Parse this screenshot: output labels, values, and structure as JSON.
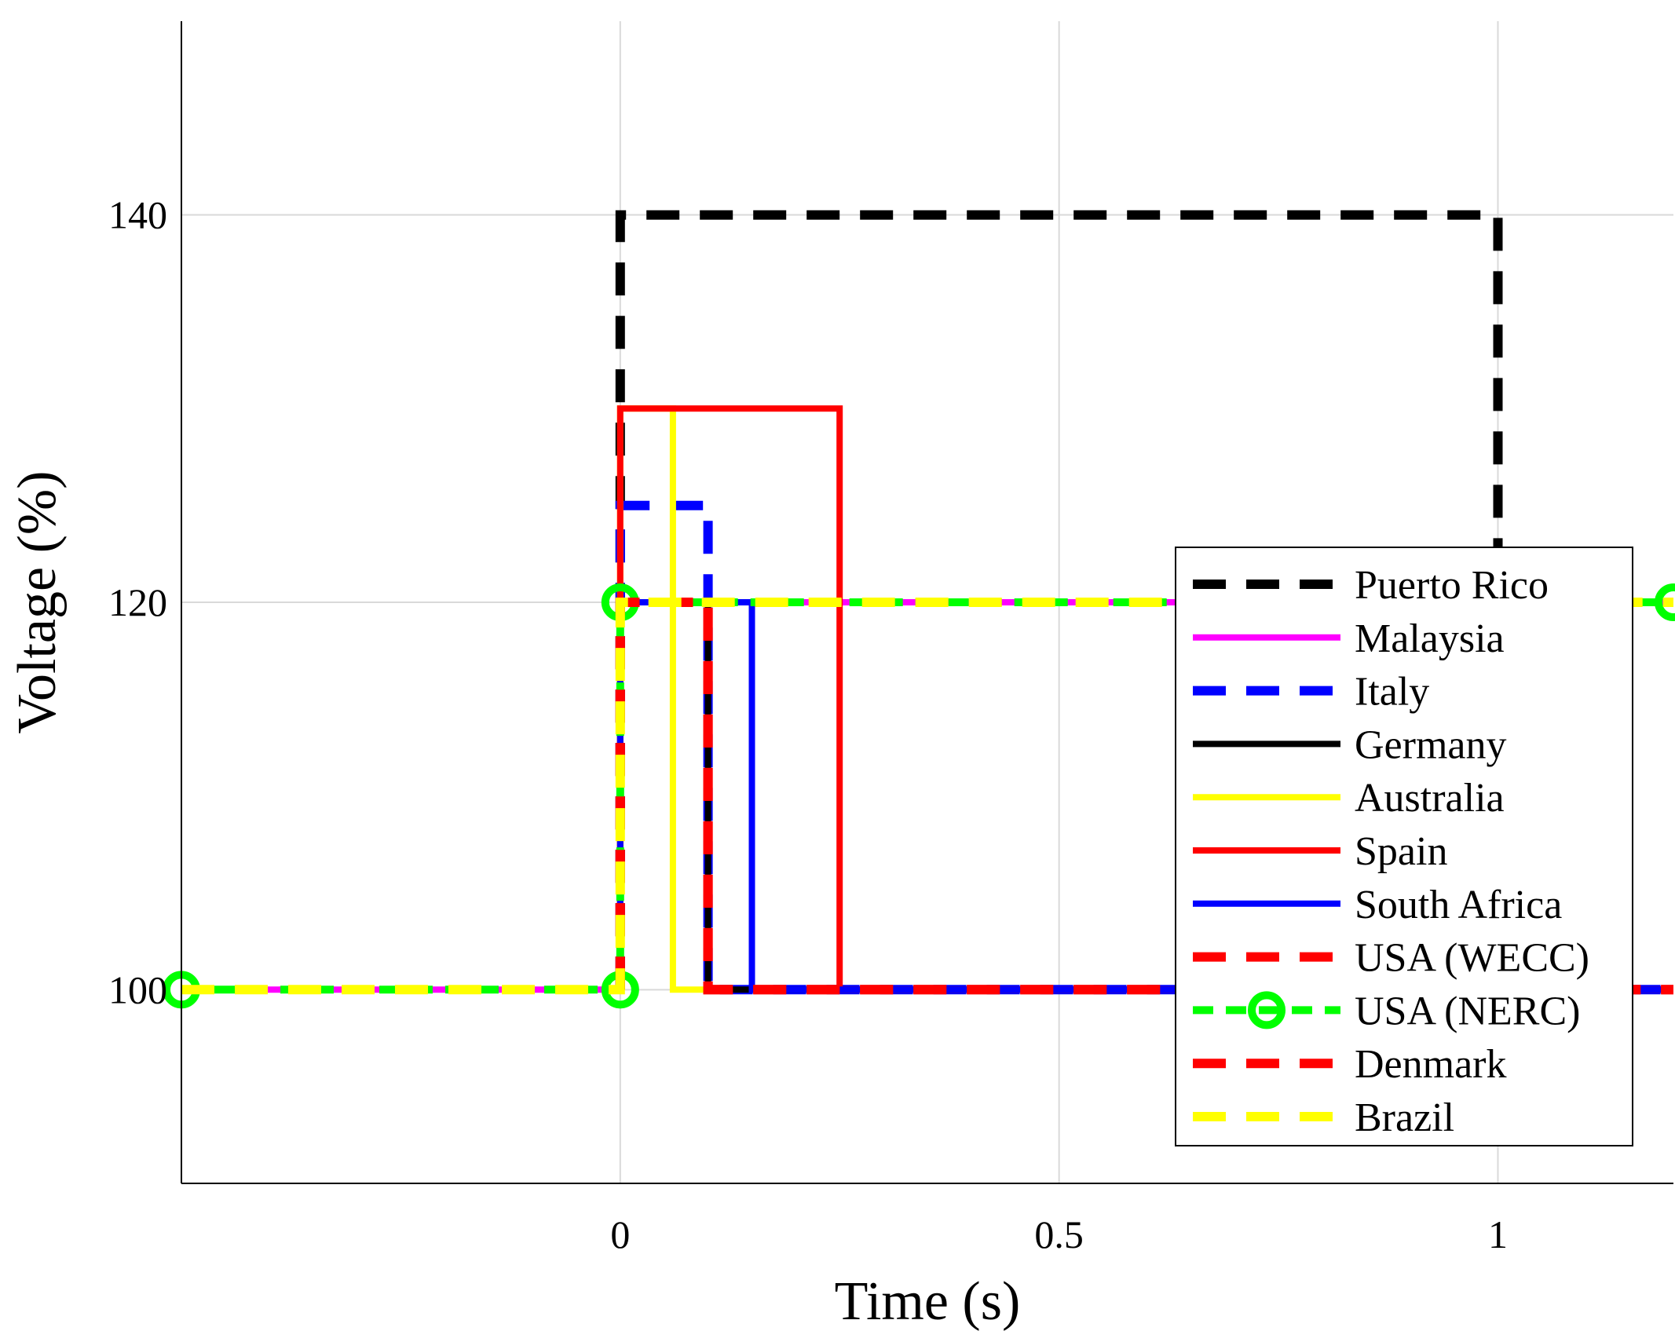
{
  "chart_data": {
    "type": "line",
    "title": "",
    "xlabel": "Time (s)",
    "ylabel": "Voltage (%)",
    "xlim": [
      -0.5,
      1.2
    ],
    "ylim": [
      90,
      150
    ],
    "grid": true,
    "xticks": [
      {
        "value": 0,
        "label": "0"
      },
      {
        "value": 0.5,
        "label": "0.5"
      },
      {
        "value": 1,
        "label": "1"
      }
    ],
    "yticks": [
      {
        "value": 100,
        "label": "100"
      },
      {
        "value": 120,
        "label": "120"
      },
      {
        "value": 140,
        "label": "140"
      }
    ],
    "legend_position": "lower-right",
    "series": [
      {
        "name": "Puerto Rico",
        "color": "#000000",
        "style": "dashed",
        "width": 12,
        "x": [
          0,
          0,
          1,
          1
        ],
        "y": [
          100,
          140,
          140,
          100
        ]
      },
      {
        "name": "Malaysia",
        "color": "#ff00ff",
        "style": "solid",
        "width": 8,
        "x": [
          -0.5,
          0,
          0,
          1.2
        ],
        "y": [
          100,
          100,
          120,
          120
        ]
      },
      {
        "name": "Italy",
        "color": "#0000ff",
        "style": "dashed",
        "width": 12,
        "x": [
          0,
          0,
          0.1,
          0.1,
          1.2
        ],
        "y": [
          100,
          125,
          125,
          100,
          100
        ]
      },
      {
        "name": "Germany",
        "color": "#000000",
        "style": "solid",
        "width": 8,
        "x": [
          0,
          0,
          0.1,
          0.1,
          1.2
        ],
        "y": [
          100,
          120,
          120,
          100,
          100
        ]
      },
      {
        "name": "Australia",
        "color": "#ffff00",
        "style": "solid",
        "width": 8,
        "x": [
          0,
          0,
          0.06,
          0.06,
          0.1
        ],
        "y": [
          100,
          130,
          130,
          100,
          100
        ]
      },
      {
        "name": "Spain",
        "color": "#ff0000",
        "style": "solid",
        "width": 8,
        "x": [
          0,
          0,
          0.25,
          0.25,
          1.2
        ],
        "y": [
          100,
          130,
          130,
          100,
          100
        ]
      },
      {
        "name": "South Africa",
        "color": "#0000ff",
        "style": "solid",
        "width": 8,
        "x": [
          0,
          0,
          0.15,
          0.15,
          1.2
        ],
        "y": [
          100,
          120,
          120,
          100,
          100
        ]
      },
      {
        "name": "USA (WECC)",
        "color": "#ff0000",
        "style": "dashed",
        "width": 12,
        "x": [
          0,
          0,
          0.1,
          0.1,
          1.2
        ],
        "y": [
          100,
          120,
          120,
          100,
          100
        ]
      },
      {
        "name": "USA (NERC)",
        "color": "#00ff00",
        "style": "dashed-marker",
        "width": 10,
        "x": [
          -0.5,
          0,
          0,
          1.2
        ],
        "y": [
          100,
          100,
          120,
          120
        ]
      },
      {
        "name": "Denmark",
        "color": "#ff0000",
        "style": "dashed",
        "width": 12,
        "x": [
          0,
          0,
          0.1,
          0.1,
          1.2
        ],
        "y": [
          100,
          120,
          120,
          100,
          100
        ]
      },
      {
        "name": "Brazil",
        "color": "#ffff00",
        "style": "dashed",
        "width": 12,
        "x": [
          -0.5,
          0,
          0,
          1.2
        ],
        "y": [
          100,
          100,
          120,
          120
        ]
      }
    ]
  }
}
